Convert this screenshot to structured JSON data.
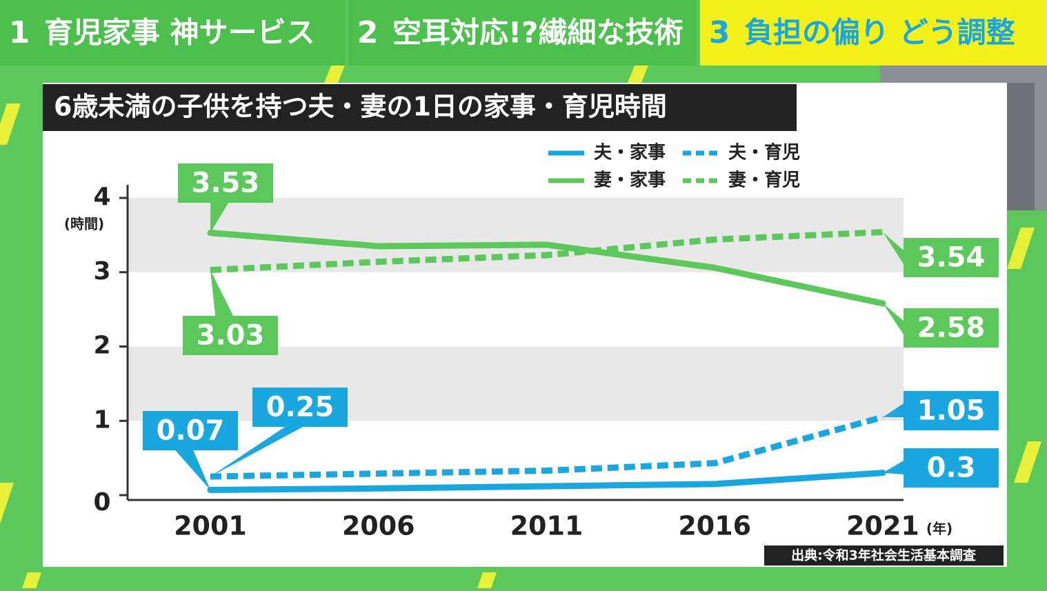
{
  "tabs": [
    {
      "number": "1",
      "label": "育児家事 神サービス"
    },
    {
      "number": "2",
      "label": "空耳対応!?繊細な技術"
    },
    {
      "number": "3",
      "label": "負担の偏り どう調整"
    }
  ],
  "chart_data": {
    "type": "line",
    "title": "6歳未満の子供を持つ夫・妻の1日の家事・育児時間",
    "y_label": "(時間)",
    "x_label": "(年)",
    "source": "出典:令和3年社会生活基本調査",
    "categories": [
      "2001",
      "2006",
      "2011",
      "2016",
      "2021"
    ],
    "ylim": [
      0,
      4
    ],
    "yticks": [
      0,
      1,
      2,
      3,
      4
    ],
    "grid": true,
    "series": [
      {
        "name": "夫・家事",
        "color": "#1aa7e0",
        "dashed": false,
        "values": [
          0.07,
          0.09,
          0.12,
          0.15,
          0.3
        ]
      },
      {
        "name": "夫・育児",
        "color": "#1aa7e0",
        "dashed": true,
        "values": [
          0.25,
          0.29,
          0.33,
          0.43,
          1.05
        ]
      },
      {
        "name": "妻・家事",
        "color": "#5cc85c",
        "dashed": false,
        "values": [
          3.53,
          3.35,
          3.37,
          3.06,
          2.58
        ]
      },
      {
        "name": "妻・育児",
        "color": "#5cc85c",
        "dashed": true,
        "values": [
          3.03,
          3.14,
          3.23,
          3.44,
          3.54
        ]
      }
    ]
  }
}
